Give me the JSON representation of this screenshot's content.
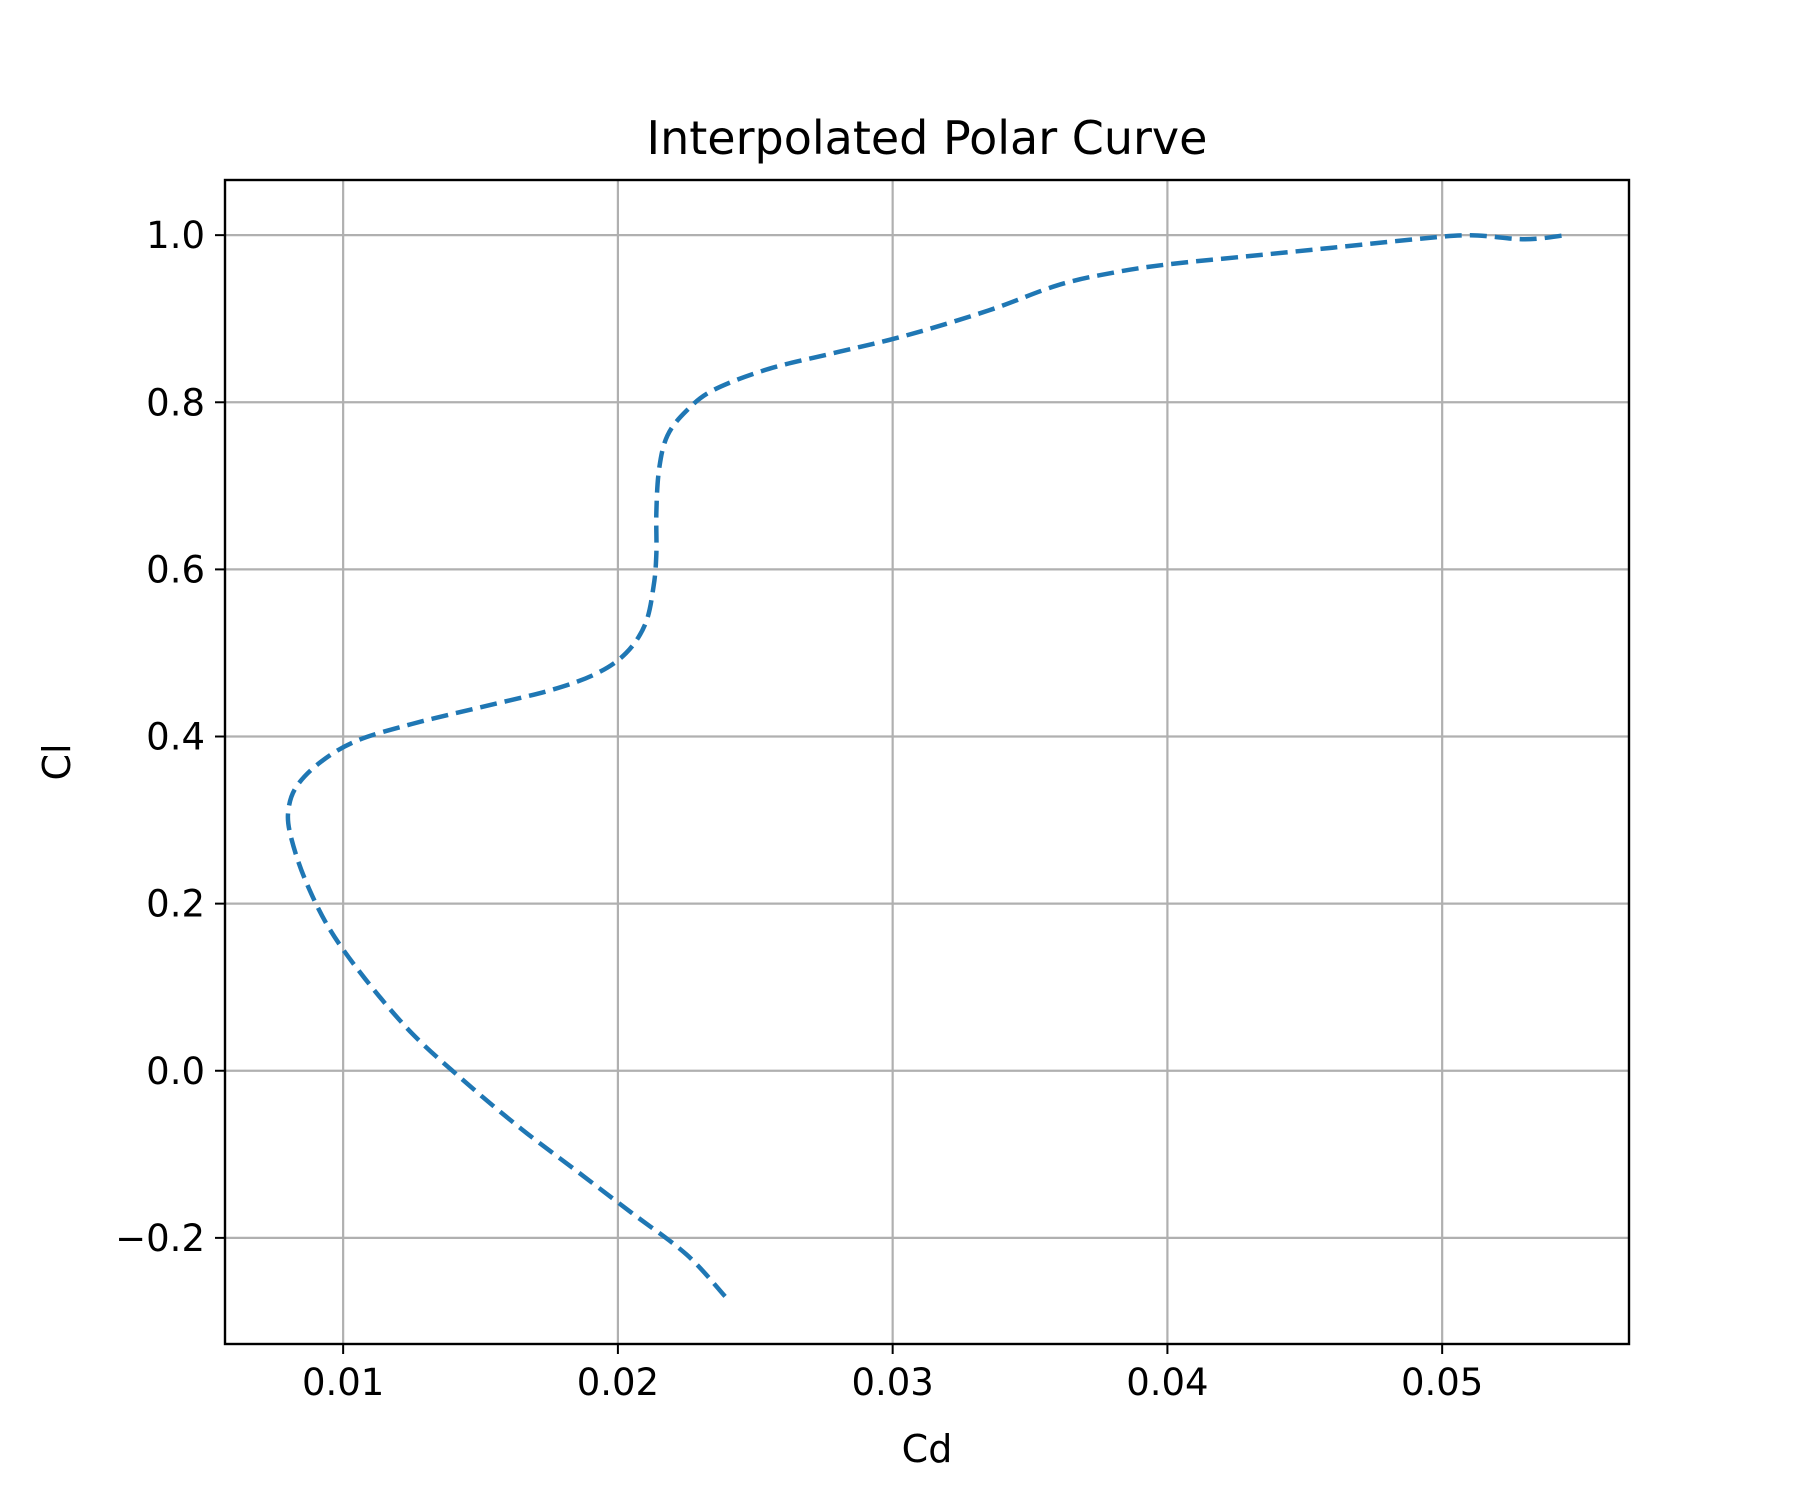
{
  "chart_data": {
    "type": "line",
    "title": "Interpolated Polar Curve",
    "xlabel": "Cd",
    "ylabel": "Cl",
    "xlim": [
      0.0057,
      0.0568
    ],
    "ylim": [
      -0.327,
      1.066
    ],
    "xticks": [
      0.01,
      0.02,
      0.03,
      0.04,
      0.05
    ],
    "xtick_labels": [
      "0.01",
      "0.02",
      "0.03",
      "0.04",
      "0.05"
    ],
    "yticks": [
      -0.2,
      0.0,
      0.2,
      0.4,
      0.6,
      0.8,
      1.0
    ],
    "ytick_labels": [
      "−0.2",
      "0.0",
      "0.2",
      "0.4",
      "0.6",
      "0.8",
      "1.0"
    ],
    "grid": true,
    "color": "#1f77b4",
    "line_style": "dashed",
    "series": [
      {
        "x": [
          0.0239,
          0.0225,
          0.0205,
          0.0185,
          0.0165,
          0.0145,
          0.0125,
          0.0108,
          0.0095,
          0.0086,
          0.0081,
          0.008,
          0.0083,
          0.0092,
          0.0105,
          0.0125,
          0.015,
          0.0175,
          0.0192,
          0.0203,
          0.021,
          0.0213,
          0.0214,
          0.0214,
          0.0215,
          0.0218,
          0.0225,
          0.0235,
          0.0255,
          0.028,
          0.0305,
          0.0335,
          0.036,
          0.038,
          0.04,
          0.043,
          0.046,
          0.049,
          0.051,
          0.053,
          0.0545
        ],
        "y": [
          -0.27,
          -0.22,
          -0.17,
          -0.12,
          -0.07,
          -0.015,
          0.045,
          0.11,
          0.17,
          0.23,
          0.28,
          0.31,
          0.34,
          0.37,
          0.395,
          0.415,
          0.435,
          0.455,
          0.475,
          0.5,
          0.535,
          0.58,
          0.62,
          0.67,
          0.72,
          0.76,
          0.79,
          0.815,
          0.84,
          0.86,
          0.88,
          0.91,
          0.94,
          0.955,
          0.965,
          0.975,
          0.985,
          0.995,
          1.0,
          0.995,
          1.0
        ]
      }
    ]
  }
}
